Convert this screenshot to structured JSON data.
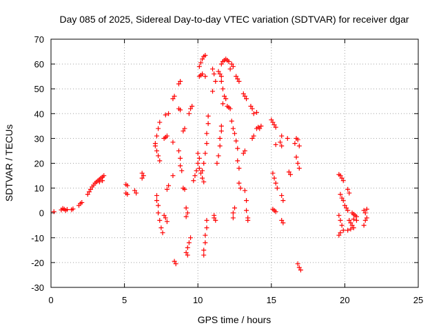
{
  "chart_data": {
    "type": "scatter",
    "title": "Day 085 of 2025, Sidereal Day-to-day VTEC variation (SDTVAR) for receiver dgar",
    "xlabel": "GPS time / hours",
    "ylabel": "SDTVAR / TECUs",
    "xlim": [
      0,
      25
    ],
    "ylim": [
      -30,
      70
    ],
    "xticks": [
      0,
      5,
      10,
      15,
      20,
      25
    ],
    "yticks": [
      -30,
      -20,
      -10,
      0,
      10,
      20,
      30,
      40,
      50,
      60,
      70
    ],
    "grid": true,
    "marker": "+",
    "color": "#ff0000",
    "series": [
      {
        "points": [
          [
            0.2,
            0.5
          ],
          [
            0.7,
            1.2
          ],
          [
            0.8,
            1.8
          ],
          [
            0.9,
            1.5
          ],
          [
            1.0,
            1.0
          ],
          [
            1.1,
            1.4
          ],
          [
            1.4,
            1.3
          ],
          [
            1.5,
            1.6
          ],
          [
            1.9,
            3.0
          ],
          [
            2.0,
            3.8
          ],
          [
            2.1,
            4.2
          ],
          [
            2.5,
            7.5
          ],
          [
            2.6,
            8.5
          ],
          [
            2.7,
            9.5
          ],
          [
            2.8,
            10.5
          ],
          [
            2.9,
            11.2
          ],
          [
            3.0,
            12.0
          ],
          [
            3.1,
            12.5
          ],
          [
            3.2,
            13.0
          ],
          [
            3.3,
            13.5
          ],
          [
            3.4,
            14.0
          ],
          [
            3.5,
            14.5
          ],
          [
            3.6,
            15.0
          ],
          [
            3.3,
            12.5
          ],
          [
            3.5,
            13.0
          ],
          [
            5.1,
            11.5
          ],
          [
            5.2,
            11.0
          ],
          [
            5.1,
            8.0
          ],
          [
            5.2,
            7.5
          ],
          [
            5.7,
            9.0
          ],
          [
            5.8,
            8.0
          ],
          [
            6.2,
            14.0
          ],
          [
            6.3,
            15.0
          ],
          [
            6.2,
            16.0
          ],
          [
            7.1,
            28.0
          ],
          [
            7.2,
            31.0
          ],
          [
            7.3,
            34.0
          ],
          [
            7.4,
            36.5
          ],
          [
            7.1,
            27.0
          ],
          [
            7.2,
            25.0
          ],
          [
            7.3,
            23.0
          ],
          [
            7.4,
            21.0
          ],
          [
            7.2,
            7.0
          ],
          [
            7.3,
            3.0
          ],
          [
            7.3,
            0.0
          ],
          [
            7.4,
            -3.0
          ],
          [
            7.5,
            -6.0
          ],
          [
            7.6,
            -8.0
          ],
          [
            7.2,
            5.0
          ],
          [
            7.7,
            30.0
          ],
          [
            7.8,
            30.5
          ],
          [
            7.9,
            31.0
          ],
          [
            7.8,
            39.5
          ],
          [
            8.0,
            40.0
          ],
          [
            7.7,
            -1.0
          ],
          [
            7.8,
            -2.0
          ],
          [
            7.9,
            -3.5
          ],
          [
            7.9,
            9.5
          ],
          [
            8.0,
            11.0
          ],
          [
            8.3,
            15.0
          ],
          [
            8.3,
            46.0
          ],
          [
            8.4,
            47.0
          ],
          [
            8.3,
            28.5
          ],
          [
            8.4,
            -19.5
          ],
          [
            8.5,
            -20.5
          ],
          [
            8.7,
            52.0
          ],
          [
            8.8,
            53.0
          ],
          [
            8.7,
            42.0
          ],
          [
            8.8,
            41.5
          ],
          [
            8.7,
            25.0
          ],
          [
            8.8,
            22.0
          ],
          [
            8.8,
            19.0
          ],
          [
            8.9,
            17.0
          ],
          [
            9.0,
            33.0
          ],
          [
            9.1,
            34.0
          ],
          [
            9.0,
            10.0
          ],
          [
            9.1,
            9.5
          ],
          [
            9.2,
            2.0
          ],
          [
            9.3,
            0.0
          ],
          [
            9.2,
            -1.5
          ],
          [
            9.4,
            40.0
          ],
          [
            9.5,
            42.0
          ],
          [
            9.6,
            43.0
          ],
          [
            9.4,
            -12.0
          ],
          [
            9.5,
            -10.0
          ],
          [
            9.3,
            -14.0
          ],
          [
            9.2,
            -16.0
          ],
          [
            9.3,
            -17.0
          ],
          [
            9.8,
            15.0
          ],
          [
            9.9,
            17.0
          ],
          [
            9.7,
            13.0
          ],
          [
            10.0,
            20.0
          ],
          [
            10.1,
            18.0
          ],
          [
            10.1,
            22.0
          ],
          [
            10.0,
            24.0
          ],
          [
            10.1,
            59.0
          ],
          [
            10.2,
            60.5
          ],
          [
            10.3,
            62.0
          ],
          [
            10.4,
            63.0
          ],
          [
            10.5,
            63.5
          ],
          [
            10.1,
            55.0
          ],
          [
            10.2,
            55.5
          ],
          [
            10.3,
            56.0
          ],
          [
            10.5,
            55.0
          ],
          [
            10.2,
            16.0
          ],
          [
            10.3,
            14.0
          ],
          [
            10.4,
            12.5
          ],
          [
            10.3,
            17.0
          ],
          [
            10.4,
            20.0
          ],
          [
            10.5,
            24.0
          ],
          [
            10.6,
            28.0
          ],
          [
            10.6,
            32.0
          ],
          [
            10.7,
            36.0
          ],
          [
            10.7,
            39.0
          ],
          [
            10.4,
            -15.0
          ],
          [
            10.5,
            -12.0
          ],
          [
            10.5,
            -9.0
          ],
          [
            10.6,
            -6.0
          ],
          [
            10.6,
            -3.0
          ],
          [
            10.4,
            -17.0
          ],
          [
            11.0,
            58.0
          ],
          [
            11.1,
            56.0
          ],
          [
            11.2,
            53.0
          ],
          [
            11.0,
            49.0
          ],
          [
            11.1,
            -1.0
          ],
          [
            11.2,
            -3.0
          ],
          [
            11.1,
            -2.0
          ],
          [
            11.3,
            20.0
          ],
          [
            11.4,
            23.0
          ],
          [
            11.5,
            27.0
          ],
          [
            11.5,
            30.0
          ],
          [
            11.6,
            33.0
          ],
          [
            11.6,
            35.0
          ],
          [
            11.4,
            57.0
          ],
          [
            11.5,
            56.0
          ],
          [
            11.6,
            55.0
          ],
          [
            11.6,
            60.0
          ],
          [
            11.7,
            61.0
          ],
          [
            11.8,
            61.5
          ],
          [
            11.9,
            62.0
          ],
          [
            12.0,
            61.5
          ],
          [
            12.1,
            61.0
          ],
          [
            11.6,
            53.0
          ],
          [
            11.7,
            50.0
          ],
          [
            11.8,
            47.0
          ],
          [
            11.7,
            44.0
          ],
          [
            11.9,
            46.0
          ],
          [
            12.0,
            43.0
          ],
          [
            12.1,
            42.5
          ],
          [
            12.2,
            42.0
          ],
          [
            12.2,
            58.0
          ],
          [
            12.3,
            60.0
          ],
          [
            12.4,
            59.0
          ],
          [
            12.3,
            37.0
          ],
          [
            12.4,
            34.0
          ],
          [
            12.5,
            32.0
          ],
          [
            12.6,
            29.0
          ],
          [
            12.7,
            26.0
          ],
          [
            12.4,
            0.0
          ],
          [
            12.5,
            2.0
          ],
          [
            12.4,
            -2.0
          ],
          [
            12.6,
            55.0
          ],
          [
            12.7,
            54.0
          ],
          [
            12.8,
            53.0
          ],
          [
            12.7,
            21.0
          ],
          [
            12.8,
            18.0
          ],
          [
            12.9,
            10.0
          ],
          [
            12.8,
            12.0
          ],
          [
            13.1,
            48.0
          ],
          [
            13.2,
            47.0
          ],
          [
            13.3,
            46.0
          ],
          [
            13.1,
            24.0
          ],
          [
            13.2,
            25.0
          ],
          [
            13.2,
            9.0
          ],
          [
            13.3,
            5.0
          ],
          [
            13.3,
            1.0
          ],
          [
            13.4,
            -2.0
          ],
          [
            13.4,
            -3.0
          ],
          [
            13.6,
            43.0
          ],
          [
            13.7,
            42.0
          ],
          [
            13.8,
            40.0
          ],
          [
            14.0,
            40.5
          ],
          [
            13.7,
            30.0
          ],
          [
            13.8,
            31.0
          ],
          [
            14.0,
            34.0
          ],
          [
            14.1,
            34.5
          ],
          [
            14.2,
            34.0
          ],
          [
            14.3,
            35.0
          ],
          [
            15.0,
            37.5
          ],
          [
            15.1,
            36.5
          ],
          [
            15.2,
            35.5
          ],
          [
            15.3,
            34.5
          ],
          [
            15.1,
            16.0
          ],
          [
            15.2,
            14.0
          ],
          [
            15.3,
            12.0
          ],
          [
            15.4,
            10.0
          ],
          [
            15.1,
            1.5
          ],
          [
            15.2,
            1.0
          ],
          [
            15.3,
            0.5
          ],
          [
            15.3,
            27.5
          ],
          [
            15.6,
            28.5
          ],
          [
            15.7,
            31.0
          ],
          [
            15.7,
            27.0
          ],
          [
            15.7,
            7.0
          ],
          [
            15.8,
            5.0
          ],
          [
            15.7,
            -3.0
          ],
          [
            15.8,
            -4.0
          ],
          [
            16.1,
            30.0
          ],
          [
            16.2,
            16.5
          ],
          [
            16.3,
            15.5
          ],
          [
            16.6,
            28.0
          ],
          [
            16.7,
            30.0
          ],
          [
            16.8,
            29.5
          ],
          [
            16.9,
            27.0
          ],
          [
            16.7,
            22.5
          ],
          [
            16.8,
            20.0
          ],
          [
            16.9,
            18.0
          ],
          [
            16.8,
            -20.5
          ],
          [
            16.9,
            -22.0
          ],
          [
            17.0,
            -23.0
          ],
          [
            19.6,
            15.5
          ],
          [
            19.7,
            15.0
          ],
          [
            19.8,
            14.0
          ],
          [
            19.9,
            13.0
          ],
          [
            19.7,
            7.5
          ],
          [
            19.8,
            6.0
          ],
          [
            19.9,
            5.0
          ],
          [
            19.6,
            -1.0
          ],
          [
            19.7,
            -3.0
          ],
          [
            19.8,
            -5.0
          ],
          [
            19.9,
            -7.0
          ],
          [
            19.6,
            -9.0
          ],
          [
            19.7,
            -8.0
          ],
          [
            20.0,
            3.0
          ],
          [
            20.1,
            2.0
          ],
          [
            20.2,
            1.0
          ],
          [
            20.2,
            9.5
          ],
          [
            20.3,
            8.0
          ],
          [
            20.3,
            -3.0
          ],
          [
            20.4,
            -4.0
          ],
          [
            20.5,
            -5.0
          ],
          [
            20.6,
            -6.0
          ],
          [
            20.5,
            0.0
          ],
          [
            20.6,
            -0.5
          ],
          [
            20.7,
            -1.0
          ],
          [
            20.8,
            -1.5
          ],
          [
            20.2,
            -7.0
          ],
          [
            20.4,
            -6.5
          ],
          [
            20.6,
            -2.5
          ],
          [
            20.8,
            -3.0
          ],
          [
            21.3,
            1.0
          ],
          [
            21.4,
            0.0
          ],
          [
            21.5,
            -2.0
          ],
          [
            21.3,
            -5.0
          ],
          [
            21.4,
            -3.0
          ],
          [
            21.5,
            1.5
          ]
        ]
      }
    ]
  }
}
